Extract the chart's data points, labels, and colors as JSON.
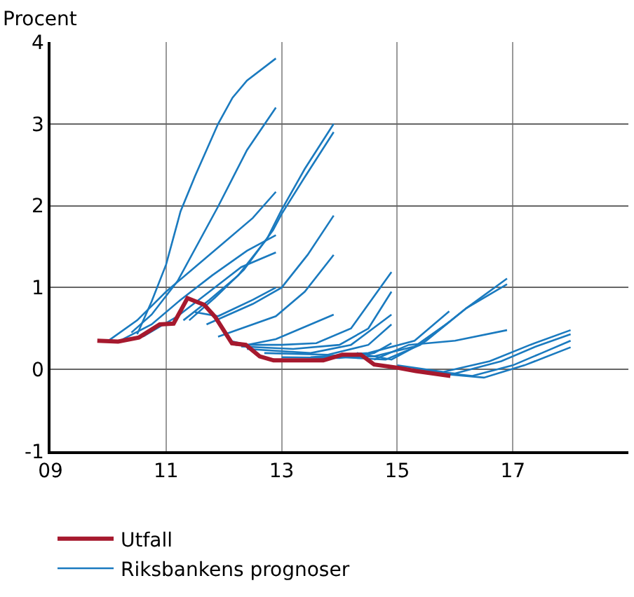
{
  "chart_data": {
    "type": "line",
    "ylabel": "Procent",
    "xlim": [
      2009,
      2019
    ],
    "xticks": [
      {
        "value": 2009,
        "label": "09"
      },
      {
        "value": 2011,
        "label": "11"
      },
      {
        "value": 2013,
        "label": "13"
      },
      {
        "value": 2015,
        "label": "15"
      },
      {
        "value": 2017,
        "label": "17"
      }
    ],
    "ylim": [
      -1,
      4
    ],
    "yticks": [
      -1,
      0,
      1,
      2,
      3,
      4
    ],
    "grid": true,
    "legend": "bottom",
    "marker": "none",
    "line_style": "solid",
    "series": [
      {
        "name": "Riksbankens prognoser",
        "color": "#1a7abf",
        "x": [
          2010.5,
          2010.75,
          2011.0,
          2011.25,
          2011.5,
          2011.9,
          2012.15,
          2012.4,
          2012.9
        ],
        "values": [
          0.43,
          0.83,
          1.28,
          1.93,
          2.36,
          3.0,
          3.32,
          3.53,
          3.8
        ]
      },
      {
        "color": "#1a7abf",
        "x": [
          2010.4,
          2010.75,
          2011.2,
          2011.9,
          2012.4,
          2012.9
        ],
        "values": [
          0.45,
          0.67,
          1.08,
          1.99,
          2.68,
          3.2
        ]
      },
      {
        "color": "#1a7abf",
        "x": [
          2011.3,
          2011.75,
          2012.25,
          2012.75,
          2013.0,
          2013.4,
          2013.9
        ],
        "values": [
          0.6,
          0.85,
          1.15,
          1.6,
          1.95,
          2.45,
          3.0
        ]
      },
      {
        "color": "#1a7abf",
        "x": [
          2011.4,
          2011.85,
          2012.35,
          2012.85,
          2013.0,
          2013.4,
          2013.9
        ],
        "values": [
          0.6,
          0.88,
          1.22,
          1.7,
          1.9,
          2.35,
          2.9
        ]
      },
      {
        "color": "#1a7abf",
        "x": [
          2011.7,
          2012.5,
          2013.0,
          2013.45,
          2013.9
        ],
        "values": [
          0.55,
          0.8,
          1.0,
          1.4,
          1.88
        ]
      },
      {
        "color": "#1a7abf",
        "x": [
          2011.9,
          2012.9,
          2013.4,
          2013.9
        ],
        "values": [
          0.4,
          0.65,
          0.95,
          1.4
        ]
      },
      {
        "color": "#1a7abf",
        "x": [
          2010.0,
          2010.5,
          2011.0,
          2011.5,
          2012.0,
          2012.5,
          2012.9
        ],
        "values": [
          0.35,
          0.6,
          0.95,
          1.25,
          1.55,
          1.85,
          2.17
        ]
      },
      {
        "color": "#1a7abf",
        "x": [
          2010.2,
          2010.75,
          2011.25,
          2011.8,
          2012.4,
          2012.9
        ],
        "values": [
          0.35,
          0.55,
          0.85,
          1.15,
          1.45,
          1.64
        ]
      },
      {
        "color": "#1a7abf",
        "x": [
          2010.6,
          2011.2,
          2011.75,
          2012.3,
          2012.9
        ],
        "values": [
          0.4,
          0.65,
          0.95,
          1.25,
          1.43
        ]
      },
      {
        "color": "#1a7abf",
        "x": [
          2011.5,
          2011.9,
          2012.5,
          2012.9
        ],
        "values": [
          0.7,
          0.65,
          0.85,
          1.0
        ]
      },
      {
        "color": "#1a7abf",
        "x": [
          2012.1,
          2012.4,
          2012.9,
          2013.5,
          2013.9
        ],
        "values": [
          0.35,
          0.3,
          0.37,
          0.55,
          0.67
        ]
      },
      {
        "color": "#1a7abf",
        "x": [
          2012.2,
          2013.0,
          2013.6,
          2014.2,
          2014.9
        ],
        "values": [
          0.3,
          0.3,
          0.32,
          0.5,
          1.19
        ]
      },
      {
        "color": "#1a7abf",
        "x": [
          2012.3,
          2013.2,
          2014.0,
          2014.5,
          2014.9
        ],
        "values": [
          0.28,
          0.25,
          0.3,
          0.5,
          0.95
        ]
      },
      {
        "color": "#1a7abf",
        "x": [
          2012.4,
          2013.5,
          2014.2,
          2014.9
        ],
        "values": [
          0.25,
          0.2,
          0.3,
          0.67
        ]
      },
      {
        "color": "#1a7abf",
        "x": [
          2012.7,
          2013.8,
          2014.5,
          2014.9
        ],
        "values": [
          0.2,
          0.18,
          0.3,
          0.55
        ]
      },
      {
        "color": "#1a7abf",
        "x": [
          2013.0,
          2014.0,
          2014.6,
          2014.9
        ],
        "values": [
          0.15,
          0.14,
          0.2,
          0.32
        ]
      },
      {
        "color": "#1a7abf",
        "x": [
          2013.5,
          2014.5,
          2015.3,
          2015.9
        ],
        "values": [
          0.15,
          0.2,
          0.35,
          0.71
        ]
      },
      {
        "color": "#1a7abf",
        "x": [
          2013.7,
          2014.6,
          2015.3,
          2015.9
        ],
        "values": [
          0.14,
          0.16,
          0.28,
          0.58
        ]
      },
      {
        "color": "#1a7abf",
        "x": [
          2014.0,
          2014.8,
          2015.4,
          2016.2,
          2016.9
        ],
        "values": [
          0.15,
          0.12,
          0.3,
          0.75,
          1.11
        ]
      },
      {
        "color": "#1a7abf",
        "x": [
          2014.3,
          2014.9,
          2015.5,
          2016.2,
          2016.9
        ],
        "values": [
          0.2,
          0.12,
          0.35,
          0.75,
          1.04
        ]
      },
      {
        "color": "#1a7abf",
        "x": [
          2014.6,
          2015.2,
          2016.0,
          2016.9
        ],
        "values": [
          0.12,
          0.3,
          0.35,
          0.48
        ]
      },
      {
        "color": "#1a7abf",
        "x": [
          2015.0,
          2015.8,
          2016.6,
          2017.3,
          2018.0
        ],
        "values": [
          0.05,
          -0.03,
          0.1,
          0.3,
          0.48
        ]
      },
      {
        "color": "#1a7abf",
        "x": [
          2015.2,
          2016.0,
          2016.8,
          2017.4,
          2018.0
        ],
        "values": [
          0.0,
          -0.05,
          0.1,
          0.28,
          0.43
        ]
      },
      {
        "color": "#1a7abf",
        "x": [
          2015.5,
          2016.3,
          2017.0,
          2017.5,
          2018.0
        ],
        "values": [
          -0.02,
          -0.08,
          0.05,
          0.2,
          0.35
        ]
      },
      {
        "color": "#1a7abf",
        "x": [
          2015.7,
          2016.5,
          2017.2,
          2018.0
        ],
        "values": [
          -0.05,
          -0.1,
          0.05,
          0.27
        ]
      },
      {
        "name": "Utfall",
        "color": "#a6192e",
        "x": [
          2009.81,
          2010.17,
          2010.53,
          2010.89,
          2011.13,
          2011.37,
          2011.66,
          2011.85,
          2012.14,
          2012.38,
          2012.62,
          2012.86,
          2013.72,
          2014.05,
          2014.37,
          2014.6,
          2015.01,
          2015.32,
          2015.92
        ],
        "values": [
          0.35,
          0.34,
          0.39,
          0.55,
          0.56,
          0.87,
          0.79,
          0.64,
          0.32,
          0.3,
          0.16,
          0.11,
          0.11,
          0.18,
          0.18,
          0.06,
          0.02,
          -0.02,
          -0.08
        ]
      }
    ]
  }
}
